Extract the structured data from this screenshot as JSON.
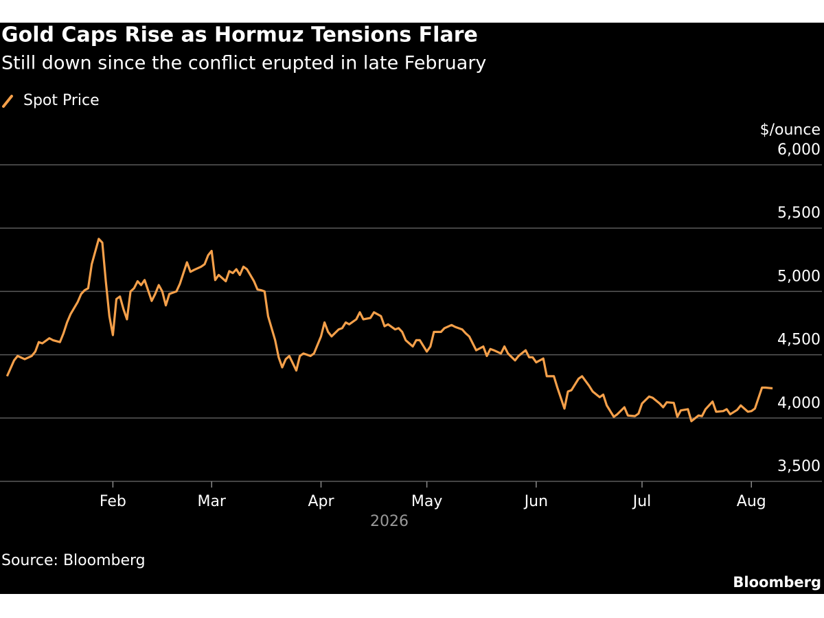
{
  "chart_data": {
    "type": "line",
    "title": "Gold Caps Rise as Hormuz Tensions Flare",
    "subtitle": "Still down since the conflict erupted in late February",
    "y_label": "$/ounce",
    "x_label": "2026",
    "source": "Source: Bloomberg",
    "brand": "Bloomberg",
    "xlim": [
      0,
      233
    ],
    "xticks": [
      {
        "value": 32,
        "label": "Feb"
      },
      {
        "value": 60,
        "label": "Mar"
      },
      {
        "value": 91,
        "label": "Apr"
      },
      {
        "value": 121,
        "label": "May"
      },
      {
        "value": 152,
        "label": "Jun"
      },
      {
        "value": 182,
        "label": "Jul"
      },
      {
        "value": 213,
        "label": "Aug"
      }
    ],
    "ylim": [
      3500,
      6000
    ],
    "yticks": [
      {
        "value": 3500,
        "label": "3,500"
      },
      {
        "value": 4000,
        "label": "4,000"
      },
      {
        "value": 4500,
        "label": "4,500"
      },
      {
        "value": 5000,
        "label": "5,000"
      },
      {
        "value": 5500,
        "label": "5,500"
      },
      {
        "value": 6000,
        "label": "6,000"
      }
    ],
    "grid": true,
    "legend": "top-left",
    "x": [
      2,
      4,
      5,
      7,
      9,
      10,
      11,
      12,
      14,
      15,
      17,
      18,
      19,
      20,
      22,
      23,
      24,
      25,
      26,
      28,
      29,
      30,
      31,
      32,
      33,
      34,
      35,
      36,
      37,
      38,
      39,
      40,
      41,
      43,
      44,
      45,
      46,
      47,
      48,
      50,
      51,
      52,
      53,
      54,
      55,
      57,
      58,
      59,
      60,
      61,
      62,
      64,
      65,
      66,
      67,
      68,
      69,
      70,
      72,
      73,
      74,
      75,
      76,
      78,
      79,
      80,
      81,
      82,
      84,
      85,
      86,
      88,
      89,
      91,
      92,
      93,
      94,
      96,
      97,
      98,
      99,
      101,
      102,
      103,
      105,
      106,
      108,
      109,
      110,
      112,
      113,
      114,
      115,
      117,
      118,
      119,
      121,
      122,
      123,
      125,
      126,
      128,
      129,
      131,
      132,
      133,
      135,
      137,
      138,
      139,
      140,
      142,
      143,
      144,
      146,
      147,
      149,
      150,
      151,
      152,
      154,
      155,
      157,
      158,
      160,
      161,
      162,
      164,
      165,
      167,
      168,
      170,
      171,
      172,
      174,
      175,
      177,
      178,
      180,
      181,
      182,
      184,
      185,
      187,
      188,
      189,
      191,
      192,
      193,
      195,
      196,
      198,
      199,
      200,
      202,
      203,
      205,
      206,
      207,
      209,
      210,
      212,
      213,
      214,
      216,
      217,
      219
    ],
    "series": [
      {
        "name": "Spot Price",
        "color": "#f5a04a",
        "values": [
          4330,
          4455,
          4490,
          4465,
          4490,
          4525,
          4600,
          4590,
          4630,
          4615,
          4600,
          4670,
          4755,
          4820,
          4915,
          4980,
          5010,
          5025,
          5215,
          5415,
          5385,
          5080,
          4805,
          4655,
          4940,
          4960,
          4860,
          4780,
          5000,
          5025,
          5080,
          5050,
          5090,
          4925,
          4980,
          5050,
          5000,
          4890,
          4980,
          5000,
          5060,
          5145,
          5230,
          5155,
          5170,
          5195,
          5215,
          5285,
          5320,
          5090,
          5130,
          5080,
          5160,
          5145,
          5175,
          5130,
          5195,
          5175,
          5080,
          5015,
          5010,
          5000,
          4805,
          4615,
          4480,
          4400,
          4465,
          4490,
          4375,
          4490,
          4510,
          4490,
          4510,
          4645,
          4755,
          4680,
          4645,
          4700,
          4710,
          4755,
          4740,
          4780,
          4835,
          4780,
          4790,
          4835,
          4805,
          4725,
          4740,
          4700,
          4710,
          4680,
          4615,
          4565,
          4615,
          4615,
          4525,
          4565,
          4680,
          4680,
          4710,
          4735,
          4720,
          4700,
          4670,
          4645,
          4535,
          4565,
          4490,
          4545,
          4535,
          4510,
          4565,
          4510,
          4455,
          4490,
          4535,
          4480,
          4480,
          4440,
          4470,
          4330,
          4330,
          4240,
          4075,
          4210,
          4220,
          4310,
          4330,
          4255,
          4210,
          4165,
          4185,
          4100,
          4010,
          4030,
          4085,
          4020,
          4015,
          4035,
          4115,
          4170,
          4160,
          4115,
          4085,
          4125,
          4120,
          4010,
          4060,
          4070,
          3975,
          4020,
          4015,
          4070,
          4130,
          4050,
          4055,
          4070,
          4030,
          4065,
          4100,
          4050,
          4055,
          4075,
          4240,
          4240,
          4235
        ]
      }
    ]
  }
}
